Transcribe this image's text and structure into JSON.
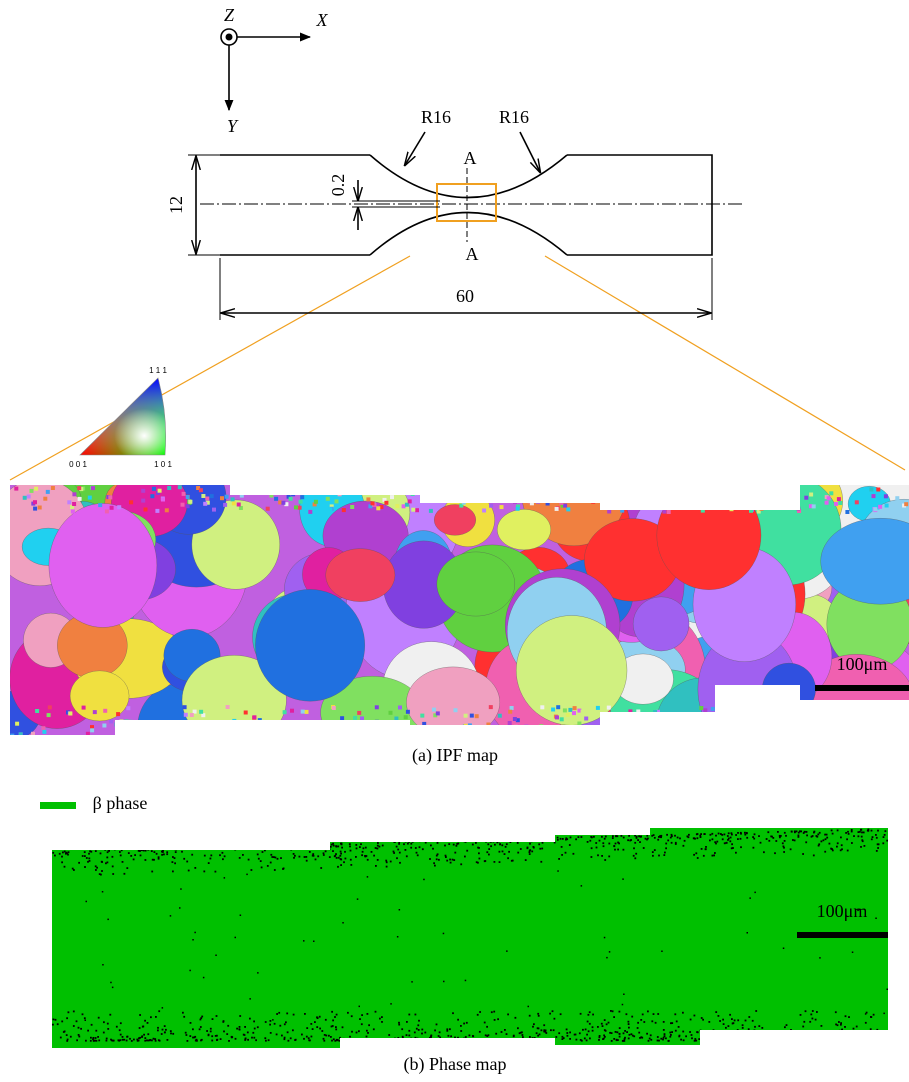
{
  "axes": {
    "z": "Z",
    "x": "X",
    "y": "Y"
  },
  "specimen": {
    "radius_left": "R16",
    "radius_right": "R16",
    "section_top": "A",
    "section_bottom": "A",
    "gap": "0.2",
    "width": "12",
    "length": "60"
  },
  "ipf_key": {
    "top": "1 1 1",
    "left": "0 0 1",
    "right": "1 0 1"
  },
  "ipf_map": {
    "scale_bar": "100μm",
    "caption": "(a) IPF map"
  },
  "phase_map": {
    "legend": "β phase",
    "scale_bar": "100μm",
    "caption": "(b) Phase map"
  }
}
